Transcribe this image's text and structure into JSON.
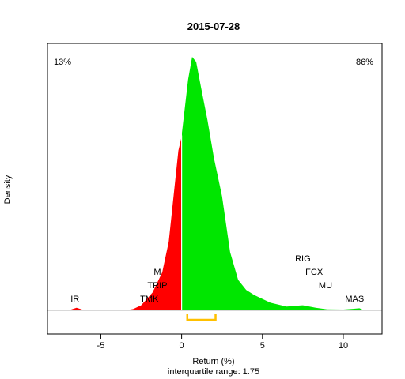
{
  "chart_data": {
    "type": "area",
    "title": "2015-07-28",
    "xlabel": "Return (%)",
    "ylabel": "Density",
    "subtitle": "interquartile range: 1.75",
    "xlim": [
      -8.3,
      12.4
    ],
    "xticks": [
      -5,
      0,
      5,
      10
    ],
    "x_tick_labels": [
      "-5",
      "0",
      "5",
      "10"
    ],
    "ylim": [
      0,
      1
    ],
    "axis_visible": false,
    "grid": false,
    "split_at": 0,
    "negative_share_label": "13%",
    "positive_share_label": "86%",
    "negative_color": "#ff0000",
    "positive_color": "#00e600",
    "iqr_color": "#ffc000",
    "iqr_range": [
      0.35,
      2.1
    ],
    "density_relative": [
      {
        "x": -7.0,
        "y": 0.0
      },
      {
        "x": -6.5,
        "y": 0.01
      },
      {
        "x": -6.0,
        "y": 0.0
      },
      {
        "x": -3.5,
        "y": 0.0
      },
      {
        "x": -3.0,
        "y": 0.005
      },
      {
        "x": -2.5,
        "y": 0.02
      },
      {
        "x": -1.8,
        "y": 0.07
      },
      {
        "x": -1.2,
        "y": 0.15
      },
      {
        "x": -0.8,
        "y": 0.27
      },
      {
        "x": -0.5,
        "y": 0.45
      },
      {
        "x": -0.2,
        "y": 0.63
      },
      {
        "x": -0.02,
        "y": 0.68
      },
      {
        "x": 0.02,
        "y": 0.7
      },
      {
        "x": 0.2,
        "y": 0.8
      },
      {
        "x": 0.4,
        "y": 0.91
      },
      {
        "x": 0.65,
        "y": 1.0
      },
      {
        "x": 0.9,
        "y": 0.98
      },
      {
        "x": 1.2,
        "y": 0.88
      },
      {
        "x": 1.6,
        "y": 0.75
      },
      {
        "x": 2.0,
        "y": 0.6
      },
      {
        "x": 2.5,
        "y": 0.45
      },
      {
        "x": 3.0,
        "y": 0.23
      },
      {
        "x": 3.5,
        "y": 0.12
      },
      {
        "x": 4.0,
        "y": 0.08
      },
      {
        "x": 4.5,
        "y": 0.06
      },
      {
        "x": 5.5,
        "y": 0.03
      },
      {
        "x": 6.5,
        "y": 0.015
      },
      {
        "x": 7.5,
        "y": 0.02
      },
      {
        "x": 8.3,
        "y": 0.01
      },
      {
        "x": 9.0,
        "y": 0.004
      },
      {
        "x": 10.0,
        "y": 0.003
      },
      {
        "x": 10.6,
        "y": 0.006
      },
      {
        "x": 11.0,
        "y": 0.008
      },
      {
        "x": 11.3,
        "y": 0.0
      }
    ],
    "annotations": [
      {
        "text": "IR",
        "x": -6.6,
        "stack": 0
      },
      {
        "text": "TMK",
        "x": -2.0,
        "stack": 0
      },
      {
        "text": "TRIP",
        "x": -1.5,
        "stack": 1
      },
      {
        "text": "M",
        "x": -1.5,
        "stack": 2
      },
      {
        "text": "MAS",
        "x": 10.7,
        "stack": 0
      },
      {
        "text": "MU",
        "x": 8.9,
        "stack": 1
      },
      {
        "text": "FCX",
        "x": 8.2,
        "stack": 2
      },
      {
        "text": "RIG",
        "x": 7.5,
        "stack": 3
      }
    ]
  }
}
